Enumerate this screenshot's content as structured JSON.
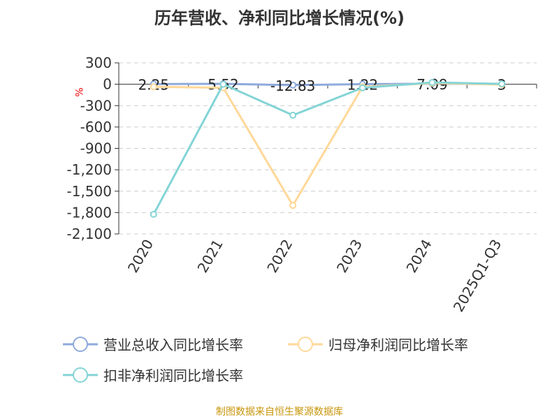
{
  "chart_data": {
    "type": "line",
    "title": "历年营收、净利同比增长情况(%)",
    "ylabel": "%",
    "categories": [
      "2020",
      "2021",
      "2022",
      "2023",
      "2024",
      "2025Q1-Q3"
    ],
    "yticks": [
      "300",
      "0",
      "-300",
      "-600",
      "-900",
      "-1,200",
      "-1,500",
      "-1,800",
      "-2,100"
    ],
    "ylim": [
      -2100,
      300
    ],
    "grid": true,
    "legend_position": "bottom",
    "series": [
      {
        "name": "营业总收入同比增长率",
        "color": "#8eaadb",
        "values": [
          2.25,
          5.52,
          -12.83,
          1.22,
          7.09,
          3
        ],
        "labels": [
          "2.25",
          "5.52",
          "-12.83",
          "1.22",
          "7.09",
          "3"
        ]
      },
      {
        "name": "归母净利润同比增长率",
        "color": "#ffd899",
        "values": [
          -35,
          -50,
          -1700,
          -35,
          15,
          -5
        ]
      },
      {
        "name": "扣非净利润同比增长率",
        "color": "#84d4d6",
        "values": [
          -1825,
          0,
          -435,
          -50,
          25,
          5
        ]
      }
    ]
  },
  "source": "制图数据来自恒生聚源数据库"
}
